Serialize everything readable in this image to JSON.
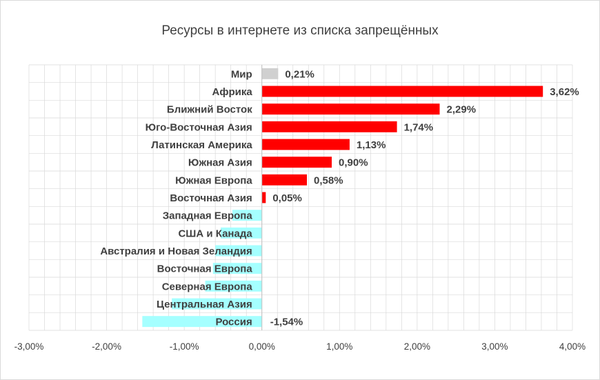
{
  "chart_data": {
    "type": "bar",
    "orientation": "horizontal",
    "title": "Ресурсы в интернете из списка запрещённых",
    "xlim": [
      -3,
      4
    ],
    "x_ticks": [
      -3,
      -2,
      -1,
      0,
      1,
      2,
      3,
      4
    ],
    "x_tick_labels": [
      "-3,00%",
      "-2,00%",
      "-1,00%",
      "0,00%",
      "1,00%",
      "2,00%",
      "3,00%",
      "4,00%"
    ],
    "grid": true,
    "legend": "none",
    "categories": [
      "Мир",
      "Африка",
      "Ближний Восток",
      "Юго-Восточная Азия",
      "Латинская Америка",
      "Южная Азия",
      "Южная Европа",
      "Восточная Азия",
      "Западная Европа",
      "США и Канада",
      "Австралия и Новая Зеландия",
      "Восточная Европа",
      "Северная Европа",
      "Центральная Азия",
      "Россия"
    ],
    "values": [
      0.21,
      3.62,
      2.29,
      1.74,
      1.13,
      0.9,
      0.58,
      0.05,
      -0.38,
      -0.53,
      -0.6,
      -0.63,
      -0.73,
      -1.16,
      -1.54
    ],
    "data_labels": [
      "0,21%",
      "3,62%",
      "2,29%",
      "1,74%",
      "1,13%",
      "0,90%",
      "0,58%",
      "0,05%",
      "",
      "",
      "",
      "",
      "",
      "",
      "-1,54%"
    ],
    "colors": {
      "world": "#d0d0d0",
      "positive": "#ff0000",
      "negative": "#a5ffff",
      "grid": "#d9d9d9",
      "text": "#404040"
    }
  }
}
